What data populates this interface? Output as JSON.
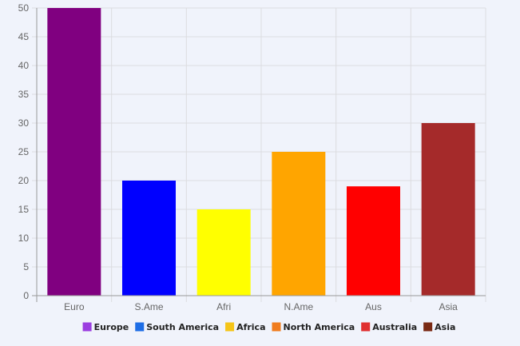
{
  "chart_data": {
    "type": "bar",
    "categories": [
      "Euro",
      "S.Ame",
      "Afri",
      "N.Ame",
      "Aus",
      "Asia"
    ],
    "values": [
      50,
      20,
      15,
      25,
      19,
      30
    ],
    "bar_colors": [
      "#800080",
      "#0000ff",
      "#ffff00",
      "#ffa500",
      "#ff0000",
      "#a52a2a"
    ],
    "y_ticks": [
      "0",
      "5",
      "10",
      "15",
      "20",
      "25",
      "30",
      "35",
      "40",
      "45",
      "50"
    ],
    "ylim": [
      0,
      50
    ],
    "grid": true,
    "legend_position": "bottom",
    "legend": [
      {
        "label": "Europe",
        "color": "#9b3ee0"
      },
      {
        "label": "South America",
        "color": "#1e6ee6"
      },
      {
        "label": "Africa",
        "color": "#f5c518"
      },
      {
        "label": "North America",
        "color": "#f07c1e"
      },
      {
        "label": "Australia",
        "color": "#e03030"
      },
      {
        "label": "Asia",
        "color": "#7a2a14"
      }
    ]
  }
}
